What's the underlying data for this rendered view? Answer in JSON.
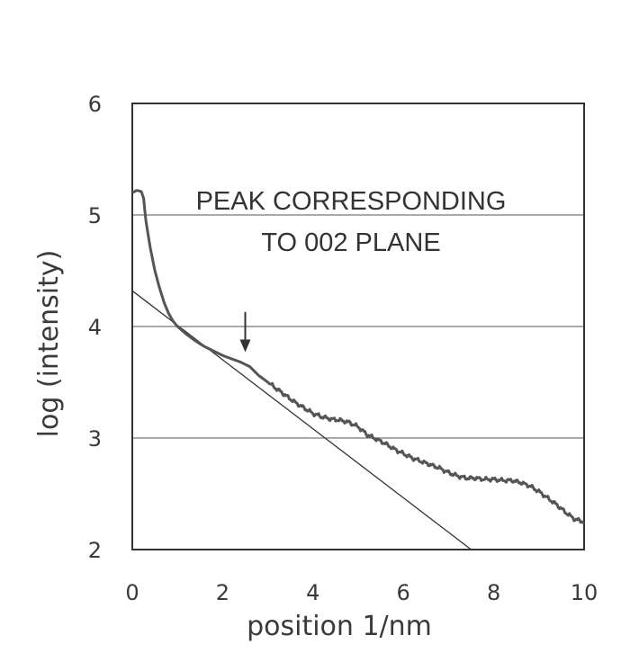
{
  "chart_data": {
    "type": "line",
    "title": "",
    "xlabel": "position 1/nm",
    "ylabel": "log (intensity)",
    "xlim": [
      0,
      10
    ],
    "ylim": [
      2,
      6
    ],
    "x_ticks": [
      0,
      2,
      4,
      6,
      8,
      10
    ],
    "y_ticks": [
      2,
      3,
      4,
      5,
      6
    ],
    "x_tick_labels": [
      "0",
      "2",
      "4",
      "6",
      "8",
      "10"
    ],
    "y_tick_labels": [
      "2",
      "3",
      "4",
      "5",
      "6"
    ],
    "grid": "horizontal",
    "colors": {
      "curve": "#555555",
      "fit_line": "#333333",
      "grid": "#555555",
      "frame": "#333333",
      "text": "#3a3a3a"
    },
    "series": [
      {
        "x": [
          0.0,
          0.1,
          0.2,
          0.25,
          0.3,
          0.4,
          0.5,
          0.6,
          0.7,
          0.8,
          0.9,
          1.0,
          1.2,
          1.4,
          1.6,
          1.8,
          2.0,
          2.2,
          2.4,
          2.6,
          2.8,
          3.0,
          3.2,
          3.4,
          3.6,
          3.8,
          4.0,
          4.2,
          4.4,
          4.6,
          4.8,
          5.0,
          5.2,
          5.4,
          5.6,
          5.8,
          6.0,
          6.2,
          6.4,
          6.6,
          6.8,
          7.0,
          7.2,
          7.4,
          7.6,
          7.8,
          8.0,
          8.2,
          8.4,
          8.6,
          8.8,
          9.0,
          9.2,
          9.4,
          9.6,
          9.8,
          10.0
        ],
        "y": [
          5.2,
          5.22,
          5.21,
          5.15,
          4.95,
          4.7,
          4.5,
          4.35,
          4.22,
          4.12,
          4.05,
          4.0,
          3.93,
          3.87,
          3.82,
          3.78,
          3.74,
          3.71,
          3.68,
          3.64,
          3.56,
          3.5,
          3.44,
          3.38,
          3.32,
          3.27,
          3.22,
          3.19,
          3.17,
          3.16,
          3.14,
          3.1,
          3.03,
          2.99,
          2.95,
          2.9,
          2.86,
          2.82,
          2.79,
          2.76,
          2.73,
          2.69,
          2.66,
          2.64,
          2.64,
          2.63,
          2.63,
          2.62,
          2.62,
          2.6,
          2.57,
          2.52,
          2.46,
          2.4,
          2.33,
          2.27,
          2.25
        ]
      },
      {
        "x": [
          0,
          7.5
        ],
        "y": [
          4.32,
          2.0
        ]
      }
    ],
    "annotations": [
      {
        "line1": "PEAK CORRESPONDING",
        "line2": "TO 002 PLANE",
        "arrow_x": 2.5,
        "arrow_from_y": 4.13,
        "arrow_to_y": 3.77
      }
    ]
  }
}
